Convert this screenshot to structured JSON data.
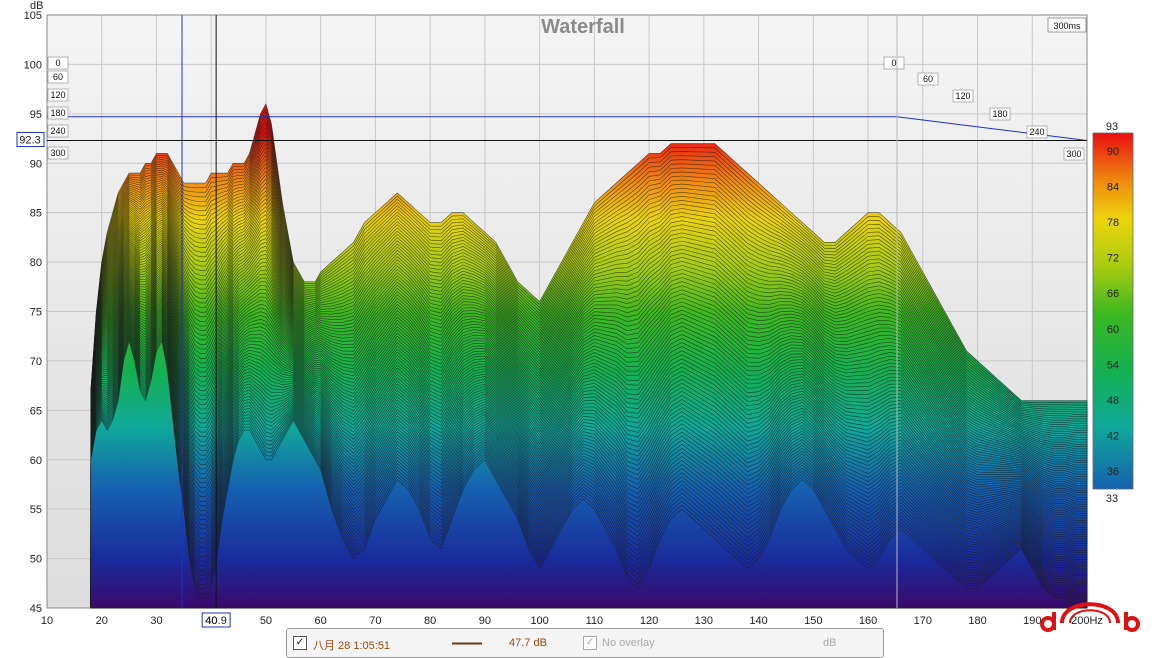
{
  "chart_data": {
    "type": "waterfall",
    "title": "Waterfall",
    "time_label": "300ms",
    "y_unit": "dB",
    "x_unit": "Hz",
    "xlim": [
      10,
      200
    ],
    "ylim": [
      45,
      105
    ],
    "x_ticks": [
      "10",
      "20",
      "30",
      "40",
      "50",
      "60",
      "70",
      "80",
      "90",
      "100",
      "110",
      "120",
      "130",
      "140",
      "150",
      "160",
      "170",
      "180",
      "190",
      "200Hz"
    ],
    "y_ticks": [
      "105",
      "100",
      "95",
      "90",
      "85",
      "80",
      "75",
      "70",
      "65",
      "60",
      "55",
      "50",
      "45"
    ],
    "time_axis_left": [
      "0",
      "60",
      "120",
      "180",
      "240",
      "300"
    ],
    "time_axis_right": [
      "0",
      "60",
      "120",
      "180",
      "240",
      "300"
    ],
    "cursor": {
      "x_readout": "40.9",
      "y_readout": "92.3"
    },
    "colorbar": {
      "min_label": "33",
      "max_label": "93",
      "ticks": [
        "90",
        "84",
        "78",
        "72",
        "66",
        "60",
        "54",
        "48",
        "42",
        "36"
      ]
    },
    "front_slice": {
      "x": [
        18,
        19,
        20,
        21,
        22,
        23,
        24,
        25,
        26,
        27,
        28,
        29,
        30,
        31,
        32,
        33,
        34,
        35,
        36,
        37,
        38,
        39,
        40,
        41,
        42,
        43,
        44,
        45,
        46,
        47,
        48,
        49,
        50,
        51,
        52,
        53,
        54,
        55,
        56,
        57,
        58,
        59,
        60,
        62,
        64,
        66,
        68,
        70,
        72,
        74,
        76,
        78,
        80,
        82,
        84,
        86,
        88,
        90,
        92,
        94,
        96,
        98,
        100,
        102,
        104,
        106,
        108,
        110,
        112,
        114,
        116,
        118,
        120,
        122,
        124,
        126,
        128,
        130,
        132,
        134,
        136,
        138,
        140,
        142,
        144,
        146,
        148,
        150,
        152,
        154,
        156,
        158,
        160,
        162,
        164,
        166,
        168,
        170,
        172,
        174,
        176,
        178,
        180,
        182,
        184,
        186,
        188,
        190,
        192,
        194,
        196,
        198,
        200
      ],
      "y": [
        60,
        63,
        64,
        63,
        64,
        66,
        70,
        72,
        70,
        67,
        66,
        68,
        71,
        72,
        69,
        64,
        59,
        55,
        50,
        47,
        46,
        46,
        47,
        50,
        54,
        57,
        60,
        62,
        63,
        63,
        62,
        61,
        60,
        60,
        61,
        62,
        63,
        64,
        63,
        62,
        61,
        60,
        59,
        55,
        52,
        50,
        51,
        54,
        56,
        58,
        57,
        55,
        52,
        51,
        54,
        57,
        59,
        60,
        58,
        56,
        54,
        51,
        49,
        51,
        53,
        55,
        56,
        55,
        53,
        51,
        48,
        47,
        49,
        52,
        54,
        55,
        54,
        53,
        52,
        51,
        50,
        49,
        50,
        52,
        55,
        57,
        58,
        57,
        55,
        53,
        51,
        50,
        49,
        50,
        52,
        53,
        52,
        51,
        50,
        49,
        48,
        47,
        47,
        48,
        49,
        50,
        51,
        49,
        47,
        46,
        46,
        45,
        45
      ]
    },
    "ridge": {
      "x": [
        18,
        19,
        20,
        21,
        22,
        23,
        24,
        25,
        26,
        27,
        28,
        29,
        30,
        31,
        32,
        33,
        34,
        35,
        36,
        37,
        38,
        39,
        40,
        41,
        42,
        43,
        44,
        45,
        46,
        47,
        48,
        49,
        50,
        51,
        52,
        53,
        54,
        55,
        56,
        57,
        58,
        59,
        60,
        62,
        64,
        66,
        68,
        70,
        72,
        74,
        76,
        78,
        80,
        82,
        84,
        86,
        88,
        90,
        92,
        94,
        96,
        98,
        100,
        102,
        104,
        106,
        108,
        110,
        112,
        114,
        116,
        118,
        120,
        122,
        124,
        126,
        128,
        130,
        132,
        134,
        136,
        138,
        140,
        142,
        144,
        146,
        148,
        150,
        152,
        154,
        156,
        158,
        160,
        162,
        164,
        166,
        168,
        170,
        172,
        174,
        176,
        178,
        180,
        182,
        184,
        186,
        188,
        190,
        192,
        194,
        196,
        198,
        200
      ],
      "y": [
        67,
        75,
        80,
        83,
        85,
        87,
        88,
        89,
        89,
        89,
        90,
        90,
        91,
        91,
        91,
        90,
        89,
        88,
        88,
        88,
        88,
        88,
        89,
        89,
        89,
        89,
        90,
        90,
        90,
        91,
        93,
        95,
        96,
        94,
        90,
        86,
        83,
        80,
        79,
        78,
        78,
        78,
        79,
        80,
        81,
        82,
        84,
        85,
        86,
        87,
        86,
        85,
        84,
        84,
        85,
        85,
        84,
        83,
        82,
        80,
        78,
        77,
        76,
        78,
        80,
        82,
        84,
        86,
        87,
        88,
        89,
        90,
        91,
        91,
        92,
        92,
        92,
        92,
        92,
        91,
        90,
        89,
        88,
        87,
        86,
        85,
        84,
        83,
        82,
        82,
        83,
        84,
        85,
        85,
        84,
        83,
        81,
        79,
        77,
        75,
        73,
        71,
        70,
        69,
        68,
        67,
        66,
        66,
        66,
        66,
        66,
        66,
        66
      ]
    }
  },
  "legend": {
    "timestamp": "八月 28 1:05:51",
    "level": "47.7 dB",
    "overlay": "No overlay",
    "unit": "dB"
  }
}
